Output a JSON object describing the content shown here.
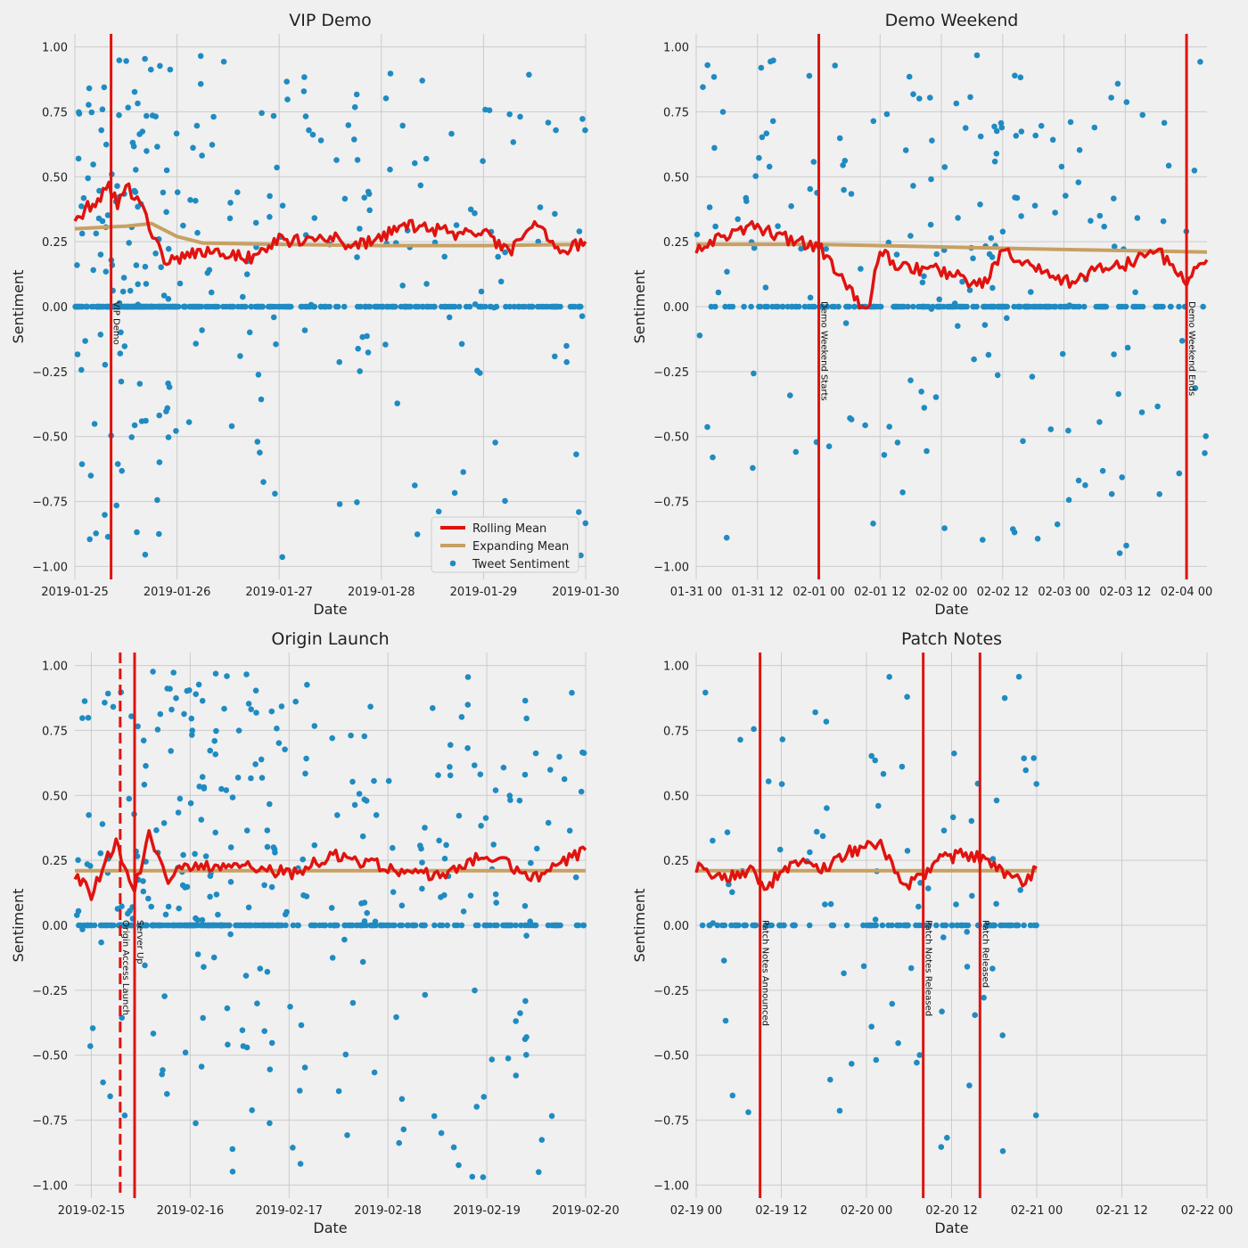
{
  "colors": {
    "background": "#f0f0f0",
    "grid": "#cbcbcb",
    "tweet": "#1f8bc2",
    "rolling": "#e0130f",
    "expanding": "#c8a063",
    "event": "#e0130f"
  },
  "legend": {
    "placement": "lower-right of first panel",
    "items": [
      {
        "label": "Rolling Mean",
        "kind": "line",
        "color": "#e0130f"
      },
      {
        "label": "Expanding Mean",
        "kind": "line",
        "color": "#c8a063"
      },
      {
        "label": "Tweet Sentiment",
        "kind": "dot",
        "color": "#1f8bc2"
      }
    ]
  },
  "chart_data": [
    {
      "type": "scatter",
      "title": "VIP Demo",
      "xlabel": "Date",
      "ylabel": "Sentiment",
      "x_unit": "days",
      "xlim": [
        "2019-01-25",
        "2019-01-30"
      ],
      "ylim": [
        -1.05,
        1.05
      ],
      "yticks": [
        1.0,
        0.75,
        0.5,
        0.25,
        0.0,
        -0.25,
        -0.5,
        -0.75,
        -1.0
      ],
      "ytick_labels": [
        "1.00",
        "0.75",
        "0.50",
        "0.25",
        "0.00",
        "−0.25",
        "−0.50",
        "−0.75",
        "−1.00"
      ],
      "xticks": [
        "2019-01-25",
        "2019-01-26",
        "2019-01-27",
        "2019-01-28",
        "2019-01-29",
        "2019-01-30"
      ],
      "xtick_labels": [
        "2019-01-25",
        "2019-01-26",
        "2019-01-27",
        "2019-01-28",
        "2019-01-29",
        "2019-01-30"
      ],
      "data_end": "2019-01-30",
      "grid": true,
      "events": [
        {
          "label": "VIP Demo",
          "x": "2019-01-25 08:30",
          "style": "solid"
        }
      ],
      "scatter_density": {
        "hotspot": "2019-01-25 14:00",
        "width_hours": 16,
        "base_per_day": 120,
        "zero_fraction": 0.55
      },
      "rolling_mean": {
        "x": [
          "2019-01-25 00:00",
          "2019-01-25 03:00",
          "2019-01-25 06:00",
          "2019-01-25 08:00",
          "2019-01-25 10:00",
          "2019-01-25 12:00",
          "2019-01-25 14:00",
          "2019-01-25 16:00",
          "2019-01-25 17:30",
          "2019-01-25 19:00",
          "2019-01-25 21:00",
          "2019-01-26 00:00",
          "2019-01-26 06:00",
          "2019-01-26 12:00",
          "2019-01-26 18:00",
          "2019-01-27 00:00",
          "2019-01-27 06:00",
          "2019-01-27 12:00",
          "2019-01-27 18:00",
          "2019-01-28 00:00",
          "2019-01-28 06:00",
          "2019-01-28 12:00",
          "2019-01-28 18:00",
          "2019-01-29 00:00",
          "2019-01-29 06:00",
          "2019-01-29 12:00",
          "2019-01-29 18:00",
          "2019-01-30 00:00"
        ],
        "y": [
          0.33,
          0.38,
          0.42,
          0.46,
          0.4,
          0.47,
          0.42,
          0.38,
          0.32,
          0.25,
          0.17,
          0.18,
          0.22,
          0.2,
          0.19,
          0.26,
          0.25,
          0.27,
          0.23,
          0.27,
          0.31,
          0.3,
          0.28,
          0.29,
          0.2,
          0.34,
          0.21,
          0.25
        ]
      },
      "expanding_mean": {
        "x": [
          "2019-01-25 00:00",
          "2019-01-25 12:00",
          "2019-01-25 18:00",
          "2019-01-26 00:00",
          "2019-01-26 06:00",
          "2019-01-27 00:00",
          "2019-01-28 00:00",
          "2019-01-29 00:00",
          "2019-01-30 00:00"
        ],
        "y": [
          0.3,
          0.31,
          0.32,
          0.27,
          0.245,
          0.24,
          0.235,
          0.235,
          0.24
        ]
      },
      "show_legend": true
    },
    {
      "type": "scatter",
      "title": "Demo Weekend",
      "xlabel": "Date",
      "ylabel": "Sentiment",
      "x_unit": "hours",
      "xlim": [
        "2019-01-31 00:00",
        "2019-02-04 04:00"
      ],
      "ylim": [
        -1.05,
        1.05
      ],
      "yticks": [
        1.0,
        0.75,
        0.5,
        0.25,
        0.0,
        -0.25,
        -0.5,
        -0.75,
        -1.0
      ],
      "ytick_labels": [
        "1.00",
        "0.75",
        "0.50",
        "0.25",
        "0.00",
        "−0.25",
        "−0.50",
        "−0.75",
        "−1.00"
      ],
      "xticks": [
        "2019-01-31 00:00",
        "2019-01-31 12:00",
        "2019-02-01 00:00",
        "2019-02-01 12:00",
        "2019-02-02 00:00",
        "2019-02-02 12:00",
        "2019-02-03 00:00",
        "2019-02-03 12:00",
        "2019-02-04 00:00"
      ],
      "xtick_labels": [
        "01-31 00",
        "01-31 12",
        "02-01 00",
        "02-01 12",
        "02-02 00",
        "02-02 12",
        "02-03 00",
        "02-03 12",
        "02-04 00"
      ],
      "data_end": "2019-02-04 04:00",
      "grid": true,
      "events": [
        {
          "label": "Demo Weekend Starts",
          "x": "2019-02-01 00:00",
          "style": "solid"
        },
        {
          "label": "Demo Weekend Ends",
          "x": "2019-02-04 00:00",
          "style": "solid"
        }
      ],
      "scatter_density": {
        "hotspot": "2019-02-02 06:00",
        "width_hours": 30,
        "base_per_day": 90,
        "zero_fraction": 0.5
      },
      "rolling_mean": {
        "x": [
          "2019-01-31 00:00",
          "2019-01-31 06:00",
          "2019-01-31 12:00",
          "2019-01-31 18:00",
          "2019-02-01 00:00",
          "2019-02-01 04:00",
          "2019-02-01 08:00",
          "2019-02-01 10:00",
          "2019-02-01 12:00",
          "2019-02-01 16:00",
          "2019-02-02 00:00",
          "2019-02-02 08:00",
          "2019-02-02 12:00",
          "2019-02-02 18:00",
          "2019-02-03 00:00",
          "2019-02-03 06:00",
          "2019-02-03 12:00",
          "2019-02-03 18:00",
          "2019-02-04 00:00",
          "2019-02-04 04:00"
        ],
        "y": [
          0.23,
          0.27,
          0.31,
          0.26,
          0.23,
          0.13,
          0.0,
          0.02,
          0.22,
          0.15,
          0.14,
          0.08,
          0.21,
          0.15,
          0.09,
          0.14,
          0.16,
          0.22,
          0.1,
          0.18
        ]
      },
      "expanding_mean": {
        "x": [
          "2019-01-31 00:00",
          "2019-02-01 00:00",
          "2019-02-02 00:00",
          "2019-02-03 00:00",
          "2019-02-04 04:00"
        ],
        "y": [
          0.24,
          0.24,
          0.23,
          0.22,
          0.21
        ]
      },
      "show_legend": false
    },
    {
      "type": "scatter",
      "title": "Origin Launch",
      "xlabel": "Date",
      "ylabel": "Sentiment",
      "x_unit": "days",
      "xlim": [
        "2019-02-14 20:00",
        "2019-02-20"
      ],
      "ylim": [
        -1.05,
        1.05
      ],
      "yticks": [
        1.0,
        0.75,
        0.5,
        0.25,
        0.0,
        -0.25,
        -0.5,
        -0.75,
        -1.0
      ],
      "ytick_labels": [
        "1.00",
        "0.75",
        "0.50",
        "0.25",
        "0.00",
        "−0.25",
        "−0.50",
        "−0.75",
        "−1.00"
      ],
      "xticks": [
        "2019-02-15",
        "2019-02-16",
        "2019-02-17",
        "2019-02-18",
        "2019-02-19",
        "2019-02-20"
      ],
      "xtick_labels": [
        "2019-02-15",
        "2019-02-16",
        "2019-02-17",
        "2019-02-18",
        "2019-02-19",
        "2019-02-20"
      ],
      "data_end": "2019-02-20",
      "grid": true,
      "events": [
        {
          "label": "Origin Access Launch",
          "x": "2019-02-15 07:00",
          "style": "dashed"
        },
        {
          "label": "Server Up",
          "x": "2019-02-15 10:30",
          "style": "solid"
        }
      ],
      "scatter_density": {
        "hotspot": "2019-02-16 00:00",
        "width_hours": 30,
        "base_per_day": 110,
        "zero_fraction": 0.5
      },
      "rolling_mean": {
        "x": [
          "2019-02-14 20:00",
          "2019-02-15 00:00",
          "2019-02-15 04:00",
          "2019-02-15 06:00",
          "2019-02-15 08:00",
          "2019-02-15 10:30",
          "2019-02-15 14:00",
          "2019-02-15 18:00",
          "2019-02-16 00:00",
          "2019-02-16 06:00",
          "2019-02-16 12:00",
          "2019-02-17 00:00",
          "2019-02-17 12:00",
          "2019-02-18 00:00",
          "2019-02-18 12:00",
          "2019-02-19 00:00",
          "2019-02-19 12:00",
          "2019-02-20 00:00"
        ],
        "y": [
          0.2,
          0.12,
          0.27,
          0.32,
          0.23,
          0.14,
          0.34,
          0.18,
          0.23,
          0.22,
          0.24,
          0.2,
          0.27,
          0.22,
          0.19,
          0.27,
          0.18,
          0.29
        ]
      },
      "expanding_mean": {
        "x": [
          "2019-02-14 20:00",
          "2019-02-20 00:00"
        ],
        "y": [
          0.21,
          0.21
        ]
      },
      "show_legend": false
    },
    {
      "type": "scatter",
      "title": "Patch Notes",
      "xlabel": "Date",
      "ylabel": "Sentiment",
      "x_unit": "hours",
      "xlim": [
        "2019-02-19 00:00",
        "2019-02-22 00:00"
      ],
      "ylim": [
        -1.05,
        1.05
      ],
      "yticks": [
        1.0,
        0.75,
        0.5,
        0.25,
        0.0,
        -0.25,
        -0.5,
        -0.75,
        -1.0
      ],
      "ytick_labels": [
        "1.00",
        "0.75",
        "0.50",
        "0.25",
        "0.00",
        "−0.25",
        "−0.50",
        "−0.75",
        "−1.00"
      ],
      "xticks": [
        "2019-02-19 00:00",
        "2019-02-19 12:00",
        "2019-02-20 00:00",
        "2019-02-20 12:00",
        "2019-02-21 00:00",
        "2019-02-21 12:00",
        "2019-02-22 00:00"
      ],
      "xtick_labels": [
        "02-19 00",
        "02-19 12",
        "02-20 00",
        "02-20 12",
        "02-21 00",
        "02-21 12",
        "02-22 00"
      ],
      "data_end": "2019-02-21 00:00",
      "grid": true,
      "events": [
        {
          "label": "Patch Notes Announced",
          "x": "2019-02-19 09:00",
          "style": "solid"
        },
        {
          "label": "Patch Notes Released",
          "x": "2019-02-20 08:00",
          "style": "solid"
        },
        {
          "label": "Patch Released",
          "x": "2019-02-20 16:00",
          "style": "solid"
        }
      ],
      "scatter_density": {
        "hotspot": "2019-02-20 12:00",
        "width_hours": 20,
        "base_per_day": 100,
        "zero_fraction": 0.55
      },
      "rolling_mean": {
        "x": [
          "2019-02-19 00:00",
          "2019-02-19 04:00",
          "2019-02-19 08:00",
          "2019-02-19 10:00",
          "2019-02-19 14:00",
          "2019-02-19 18:00",
          "2019-02-19 22:00",
          "2019-02-20 02:00",
          "2019-02-20 04:00",
          "2019-02-20 06:00",
          "2019-02-20 09:00",
          "2019-02-20 10:00",
          "2019-02-20 14:00",
          "2019-02-20 16:00",
          "2019-02-20 18:00",
          "2019-02-20 22:00",
          "2019-02-21 00:00"
        ],
        "y": [
          0.22,
          0.19,
          0.21,
          0.15,
          0.25,
          0.22,
          0.29,
          0.31,
          0.2,
          0.16,
          0.2,
          0.26,
          0.27,
          0.26,
          0.22,
          0.16,
          0.22
        ]
      },
      "expanding_mean": {
        "x": [
          "2019-02-19 00:00",
          "2019-02-21 00:00"
        ],
        "y": [
          0.21,
          0.21
        ]
      },
      "show_legend": false
    }
  ]
}
